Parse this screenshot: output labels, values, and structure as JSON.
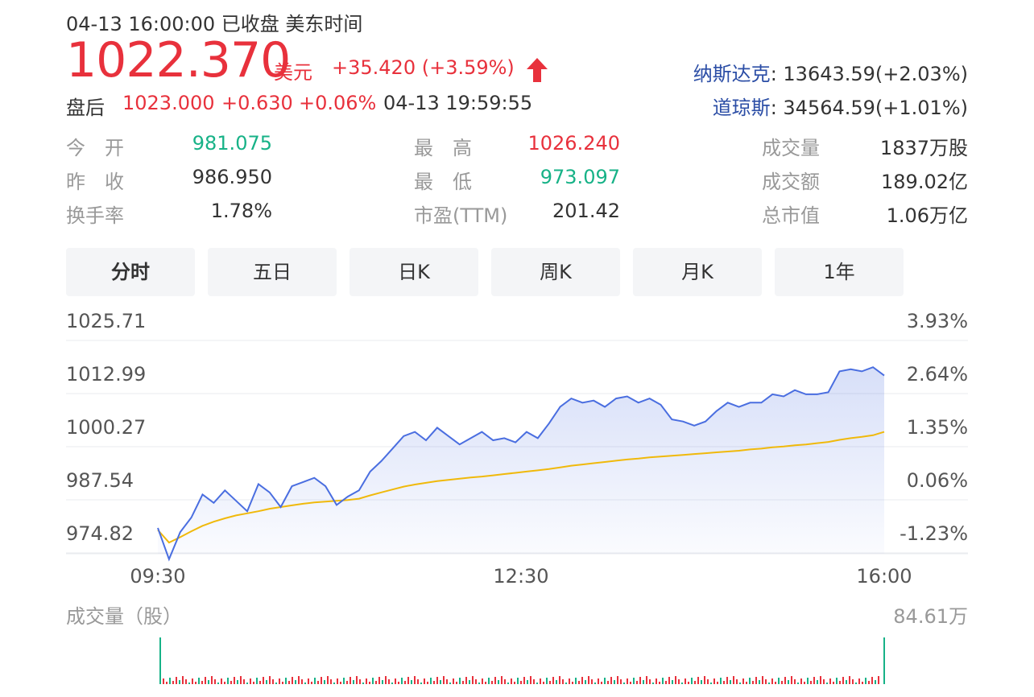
{
  "header": {
    "status": "04-13 16:00:00  已收盘  美东时间",
    "price": "1022.370",
    "currency": "美元",
    "change": "+35.420 (+3.59%)",
    "direction_icon": "up-arrow-icon",
    "after_hours": {
      "label": "盘后",
      "price": "1023.000",
      "change": "+0.630",
      "pct": "+0.06%",
      "time": "04-13 19:59:55"
    },
    "indices": [
      {
        "name": "纳斯达克",
        "value": ": 13643.59(+2.03%)"
      },
      {
        "name": "道琼斯",
        "value": ": 34564.59(+1.01%)"
      }
    ]
  },
  "stats": [
    {
      "label": "今　开",
      "value": "981.075",
      "color": "#17b287"
    },
    {
      "label": "昨　收",
      "value": "986.950",
      "color": "#333333"
    },
    {
      "label": "换手率",
      "value": "1.78%",
      "color": "#333333"
    },
    {
      "label": "最　高",
      "value": "1026.240",
      "color": "#e8313c"
    },
    {
      "label": "最　低",
      "value": "973.097",
      "color": "#17b287"
    },
    {
      "label": "市盈(TTM)",
      "value": "201.42",
      "color": "#333333"
    },
    {
      "label": "成交量",
      "value": "1837万股",
      "color": "#333333"
    },
    {
      "label": "成交额",
      "value": "189.02亿",
      "color": "#333333"
    },
    {
      "label": "总市值",
      "value": "1.06万亿",
      "color": "#333333"
    }
  ],
  "tabs": [
    "分时",
    "五日",
    "日K",
    "周K",
    "月K",
    "1年"
  ],
  "active_tab": "分时",
  "colors": {
    "up": "#e8313c",
    "down": "#17b287",
    "price_line": "#4a6ee0",
    "avg_line": "#f0b90b"
  },
  "chart_data": {
    "type": "line",
    "y_ticks_left": [
      "1025.71",
      "1012.99",
      "1000.27",
      "987.54",
      "974.82"
    ],
    "y_ticks_right": [
      "3.93%",
      "2.64%",
      "1.35%",
      "0.06%",
      "-1.23%"
    ],
    "ylim": [
      974.82,
      1025.71
    ],
    "x_ticks": [
      "09:30",
      "12:30",
      "16:00"
    ],
    "x": [
      0,
      6,
      12,
      18,
      24,
      30,
      36,
      42,
      48,
      54,
      60,
      66,
      72,
      78,
      84,
      90,
      96,
      102,
      108,
      114,
      120,
      126,
      132,
      138,
      144,
      150,
      156,
      162,
      168,
      174,
      180,
      186,
      192,
      198,
      204,
      210,
      216,
      222,
      228,
      234,
      240,
      246,
      252,
      258,
      264,
      270,
      276,
      282,
      288,
      294,
      300,
      306,
      312,
      318,
      324,
      330,
      336,
      342,
      348,
      354,
      360,
      366,
      372,
      378,
      384,
      390
    ],
    "series": [
      {
        "role": "price",
        "values": [
          981.0,
          973.5,
          980.0,
          983.5,
          989.0,
          987.0,
          990.0,
          987.5,
          985.0,
          991.5,
          989.5,
          986.0,
          991.0,
          992.0,
          993.0,
          991.0,
          986.5,
          988.5,
          990.0,
          994.5,
          997.0,
          1000.0,
          1003.0,
          1004.0,
          1002.0,
          1005.0,
          1003.0,
          1001.0,
          1002.5,
          1004.0,
          1002.0,
          1002.5,
          1001.5,
          1004.0,
          1002.5,
          1006.0,
          1010.0,
          1012.0,
          1011.0,
          1011.5,
          1010.0,
          1012.0,
          1012.5,
          1011.0,
          1012.0,
          1010.5,
          1007.0,
          1006.5,
          1005.5,
          1006.5,
          1009.0,
          1011.0,
          1010.0,
          1011.0,
          1011.0,
          1013.0,
          1012.5,
          1014.0,
          1013.0,
          1013.0,
          1013.5,
          1018.5,
          1019.0,
          1018.5,
          1019.5,
          1017.5
        ]
      },
      {
        "role": "average",
        "values": [
          980.5,
          977.5,
          978.8,
          980.2,
          981.5,
          982.5,
          983.3,
          984.0,
          984.5,
          985.0,
          985.6,
          986.0,
          986.4,
          986.8,
          987.1,
          987.3,
          987.5,
          987.7,
          988.0,
          988.8,
          989.5,
          990.2,
          990.9,
          991.4,
          991.8,
          992.2,
          992.5,
          992.8,
          993.1,
          993.3,
          993.6,
          993.9,
          994.2,
          994.5,
          994.8,
          995.1,
          995.5,
          995.9,
          996.2,
          996.5,
          996.8,
          997.1,
          997.4,
          997.6,
          997.9,
          998.1,
          998.3,
          998.5,
          998.7,
          998.9,
          999.1,
          999.3,
          999.5,
          999.8,
          1000.0,
          1000.3,
          1000.5,
          1000.8,
          1001.0,
          1001.3,
          1001.6,
          1002.1,
          1002.5,
          1002.8,
          1003.2,
          1004.0
        ]
      }
    ],
    "volume": {
      "label": "成交量（股）",
      "max_label": "84.61万",
      "open_bar": 1.0,
      "close_bar": 1.0
    }
  }
}
